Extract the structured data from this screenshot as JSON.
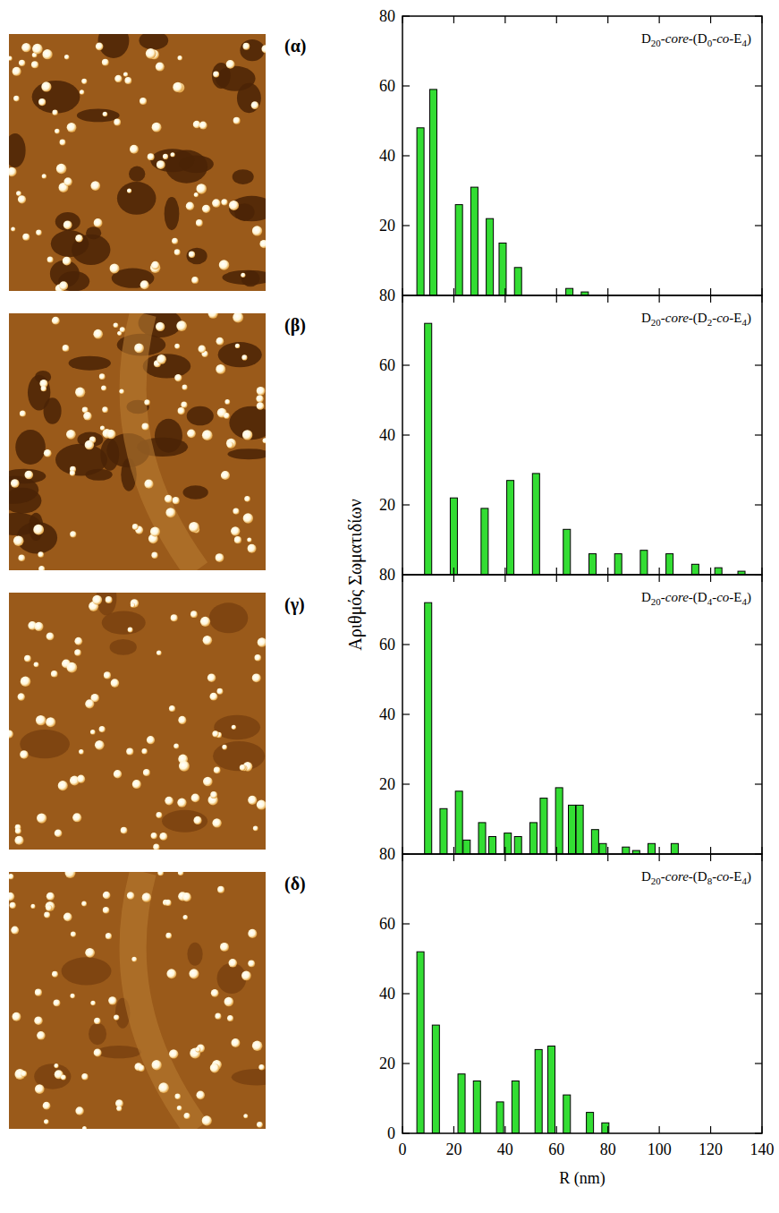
{
  "figure": {
    "ylabel": "Αριθμός Σωματιδίων"
  },
  "chart_data": [
    {
      "type": "bar",
      "annotation": "(α)",
      "title": "D20-core-(D0-co-E4)",
      "color": "#33dd33",
      "x": [
        7,
        12,
        22,
        28,
        34,
        39,
        45,
        65,
        71
      ],
      "values": [
        48,
        59,
        26,
        31,
        22,
        15,
        8,
        2,
        1
      ],
      "xlim": [
        0,
        140
      ],
      "xticks": [
        0,
        20,
        40,
        60,
        80,
        100,
        120,
        140
      ],
      "ylim": [
        0,
        80
      ],
      "yticks": [
        20,
        40,
        60,
        80
      ],
      "tick_labels": "y"
    },
    {
      "type": "bar",
      "annotation": "(β)",
      "title": "D20-core-(D2-co-E4)",
      "color": "#33dd33",
      "x": [
        10,
        20,
        32,
        42,
        52,
        64,
        74,
        84,
        94,
        104,
        114,
        123,
        132
      ],
      "values": [
        72,
        22,
        19,
        27,
        29,
        13,
        6,
        6,
        7,
        6,
        3,
        2,
        1
      ],
      "xlim": [
        0,
        140
      ],
      "xticks": [
        0,
        20,
        40,
        60,
        80,
        100,
        120,
        140
      ],
      "ylim": [
        0,
        80
      ],
      "yticks": [
        20,
        40,
        60,
        80
      ],
      "tick_labels": "y"
    },
    {
      "type": "bar",
      "annotation": "(γ)",
      "title": "D20-core-(D4-co-E4)",
      "color": "#33dd33",
      "x": [
        10,
        16,
        22,
        25,
        31,
        35,
        41,
        45,
        51,
        55,
        61,
        66,
        69,
        75,
        78,
        87,
        91,
        97,
        106
      ],
      "values": [
        72,
        13,
        18,
        4,
        9,
        5,
        6,
        5,
        9,
        16,
        19,
        14,
        14,
        7,
        3,
        2,
        1,
        3,
        3
      ],
      "xlim": [
        0,
        140
      ],
      "xticks": [
        0,
        20,
        40,
        60,
        80,
        100,
        120,
        140
      ],
      "ylim": [
        0,
        80
      ],
      "yticks": [
        20,
        40,
        60,
        80
      ],
      "tick_labels": "y"
    },
    {
      "type": "bar",
      "annotation": "(δ)",
      "title": "D20-core-(D8-co-E4)",
      "color": "#33dd33",
      "x": [
        7,
        13,
        23,
        29,
        38,
        44,
        53,
        58,
        64,
        73,
        79
      ],
      "values": [
        52,
        31,
        17,
        15,
        9,
        15,
        24,
        25,
        11,
        6,
        3
      ],
      "xlabel": "R (nm)",
      "xlim": [
        0,
        140
      ],
      "xticks": [
        0,
        20,
        40,
        60,
        80,
        100,
        120,
        140
      ],
      "ylim": [
        0,
        80
      ],
      "yticks": [
        0,
        20,
        40,
        60,
        80
      ]
    }
  ]
}
